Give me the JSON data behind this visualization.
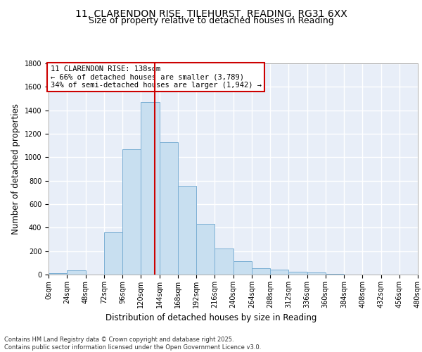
{
  "title_line1": "11, CLARENDON RISE, TILEHURST, READING, RG31 6XX",
  "title_line2": "Size of property relative to detached houses in Reading",
  "xlabel": "Distribution of detached houses by size in Reading",
  "ylabel": "Number of detached properties",
  "bar_values": [
    10,
    35,
    0,
    360,
    1070,
    1470,
    1130,
    755,
    430,
    225,
    115,
    55,
    45,
    25,
    20,
    5,
    0,
    0,
    0,
    0
  ],
  "bin_edges": [
    0,
    24,
    48,
    72,
    96,
    120,
    144,
    168,
    192,
    216,
    240,
    264,
    288,
    312,
    336,
    360,
    384,
    408,
    432,
    456,
    480
  ],
  "bar_color": "#c8dff0",
  "bar_edgecolor": "#7bafd4",
  "property_size": 138,
  "property_label": "11 CLARENDON RISE: 138sqm",
  "annotation_line2": "← 66% of detached houses are smaller (3,789)",
  "annotation_line3": "34% of semi-detached houses are larger (1,942) →",
  "vline_color": "#cc0000",
  "ylim": [
    0,
    1800
  ],
  "yticks": [
    0,
    200,
    400,
    600,
    800,
    1000,
    1200,
    1400,
    1600,
    1800
  ],
  "xtick_labels": [
    "0sqm",
    "24sqm",
    "48sqm",
    "72sqm",
    "96sqm",
    "120sqm",
    "144sqm",
    "168sqm",
    "192sqm",
    "216sqm",
    "240sqm",
    "264sqm",
    "288sqm",
    "312sqm",
    "336sqm",
    "360sqm",
    "384sqm",
    "408sqm",
    "432sqm",
    "456sqm",
    "480sqm"
  ],
  "background_color": "#e8eef8",
  "grid_color": "#ffffff",
  "footer_line1": "Contains HM Land Registry data © Crown copyright and database right 2025.",
  "footer_line2": "Contains public sector information licensed under the Open Government Licence v3.0.",
  "title_fontsize": 10,
  "subtitle_fontsize": 9,
  "axis_label_fontsize": 8.5,
  "tick_fontsize": 7,
  "annotation_fontsize": 7.5,
  "footer_fontsize": 6
}
